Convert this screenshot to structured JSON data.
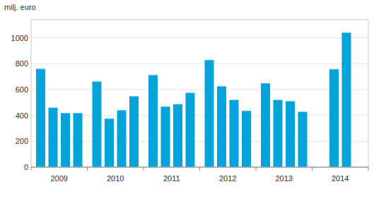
{
  "chart_data": {
    "type": "bar",
    "y_label": "milj. euro",
    "categories": [
      "2009",
      "2010",
      "2011",
      "2012",
      "2013",
      "2014"
    ],
    "series": [
      {
        "color": "#05a3dc",
        "values": [
          760,
          662,
          712,
          828,
          648,
          null
        ]
      },
      {
        "color": "#05a3dc",
        "values": [
          460,
          375,
          468,
          625,
          520,
          757
        ]
      },
      {
        "color": "#05a3dc",
        "values": [
          418,
          440,
          487,
          520,
          510,
          1040
        ]
      },
      {
        "color": "#05a3dc",
        "values": [
          418,
          548,
          575,
          435,
          428,
          null
        ]
      }
    ],
    "ylim": [
      0,
      1140
    ],
    "yticks": [
      0,
      200,
      400,
      600,
      800,
      1000
    ],
    "grid": true
  }
}
